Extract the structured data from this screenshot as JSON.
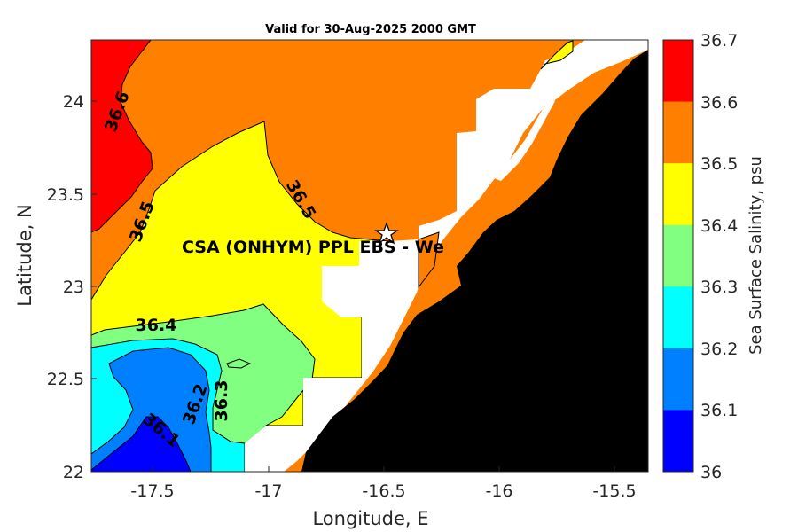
{
  "title": "Valid for 30-Aug-2025 2000 GMT",
  "xlabel": "Longitude, E",
  "ylabel": "Latitude, N",
  "x_ticks": [
    "-17.5",
    "-17",
    "-16.5",
    "-16",
    "-15.5"
  ],
  "y_ticks": [
    "24",
    "23.5",
    "23",
    "22.5",
    "22"
  ],
  "x_range": [
    -17.78,
    -15.35
  ],
  "y_range": [
    22.0,
    24.33
  ],
  "colorbar": {
    "label": "Sea Surface Salinity, psu",
    "ticks": [
      "36.7",
      "36.6",
      "36.5",
      "36.4",
      "36.3",
      "36.2",
      "36.1",
      "36"
    ],
    "levels": [
      {
        "range": "36.6-36.7",
        "color": "#ff0000"
      },
      {
        "range": "36.5-36.6",
        "color": "#ff8000"
      },
      {
        "range": "36.4-36.5",
        "color": "#ffff00"
      },
      {
        "range": "36.3-36.4",
        "color": "#80ff80"
      },
      {
        "range": "36.2-36.3",
        "color": "#00ffff"
      },
      {
        "range": "36.1-36.2",
        "color": "#0080ff"
      },
      {
        "range": "36.0-36.1",
        "color": "#0000ff"
      }
    ]
  },
  "contour_labels": [
    "36.6",
    "36.5",
    "36.5",
    "36.4",
    "36.3",
    "36.2",
    "36.1"
  ],
  "site": {
    "label": "CSA (ONHYM) PPL EBS  - We",
    "marker": "star",
    "longitude": -16.5,
    "latitude": 23.28
  },
  "land_color": "#000000",
  "nodata_color": "#ffffff"
}
